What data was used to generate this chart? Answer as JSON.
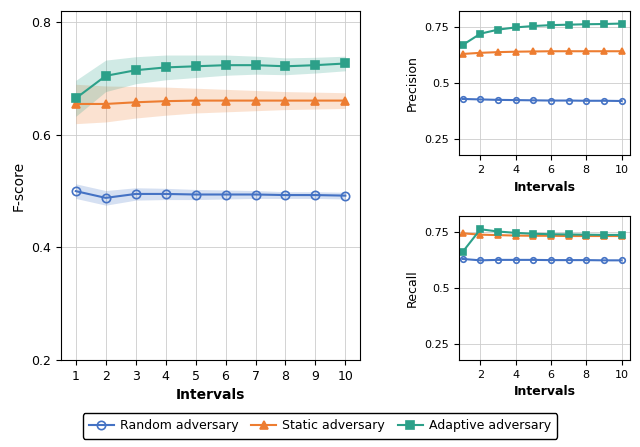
{
  "x": [
    1,
    2,
    3,
    4,
    5,
    6,
    7,
    8,
    9,
    10
  ],
  "fscore": {
    "random": [
      0.5,
      0.488,
      0.495,
      0.495,
      0.494,
      0.494,
      0.494,
      0.493,
      0.493,
      0.492
    ],
    "static": [
      0.655,
      0.655,
      0.658,
      0.66,
      0.661,
      0.661,
      0.661,
      0.661,
      0.661,
      0.661
    ],
    "adaptive": [
      0.665,
      0.705,
      0.715,
      0.72,
      0.722,
      0.724,
      0.724,
      0.722,
      0.724,
      0.727
    ]
  },
  "fscore_std": {
    "random": [
      0.013,
      0.013,
      0.011,
      0.01,
      0.009,
      0.008,
      0.007,
      0.006,
      0.006,
      0.006
    ],
    "static": [
      0.035,
      0.032,
      0.028,
      0.025,
      0.022,
      0.02,
      0.018,
      0.016,
      0.015,
      0.014
    ],
    "adaptive": [
      0.032,
      0.028,
      0.024,
      0.022,
      0.02,
      0.018,
      0.016,
      0.015,
      0.014,
      0.013
    ]
  },
  "precision": {
    "random": [
      0.43,
      0.428,
      0.426,
      0.425,
      0.424,
      0.423,
      0.423,
      0.422,
      0.422,
      0.421
    ],
    "static": [
      0.63,
      0.635,
      0.638,
      0.64,
      0.641,
      0.642,
      0.642,
      0.642,
      0.642,
      0.642
    ],
    "adaptive": [
      0.67,
      0.72,
      0.738,
      0.748,
      0.754,
      0.758,
      0.76,
      0.762,
      0.763,
      0.765
    ]
  },
  "recall": {
    "random": [
      0.628,
      0.622,
      0.624,
      0.624,
      0.624,
      0.623,
      0.623,
      0.623,
      0.622,
      0.622
    ],
    "static": [
      0.742,
      0.736,
      0.734,
      0.732,
      0.731,
      0.731,
      0.73,
      0.73,
      0.73,
      0.73
    ],
    "adaptive": [
      0.66,
      0.76,
      0.75,
      0.744,
      0.74,
      0.738,
      0.737,
      0.736,
      0.735,
      0.735
    ]
  },
  "colors": {
    "random": "#4472C4",
    "static": "#ED7D31",
    "adaptive": "#2CA089"
  },
  "labels": {
    "random": "Random adversary",
    "static": "Static adversary",
    "adaptive": "Adaptive adversary"
  },
  "fscore_ylim": [
    0.2,
    0.82
  ],
  "fscore_yticks": [
    0.2,
    0.4,
    0.6,
    0.8
  ],
  "precision_ylim": [
    0.18,
    0.82
  ],
  "precision_yticks": [
    0.25,
    0.5,
    0.75
  ],
  "recall_ylim": [
    0.18,
    0.82
  ],
  "recall_yticks": [
    0.25,
    0.5,
    0.75
  ],
  "xlabel": "Intervals",
  "ylabel_left": "F-score",
  "ylabel_precision": "Precision",
  "ylabel_recall": "Recall",
  "markers": [
    "o",
    "^",
    "s"
  ],
  "series_order": [
    "random",
    "static",
    "adaptive"
  ]
}
